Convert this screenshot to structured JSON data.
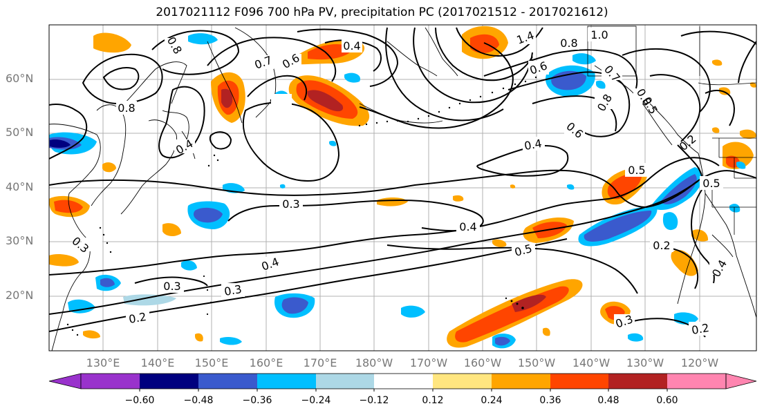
{
  "title": "2017021112 F096 700 hPa PV, precipitation PC (2017021512 - 2017021612)",
  "lat_labels": [
    "60°N",
    "50°N",
    "40°N",
    "30°N",
    "20°N"
  ],
  "lon_labels": [
    "130°E",
    "140°E",
    "150°E",
    "160°E",
    "170°E",
    "180°W",
    "170°W",
    "160°W",
    "150°W",
    "140°W",
    "130°W",
    "120°W"
  ],
  "colorbar": {
    "colors": [
      "#9932cc",
      "#00007f",
      "#3a5acd",
      "#00bfff",
      "#add8e6",
      "#ffffff",
      "#ffe680",
      "#ffa500",
      "#ff4500",
      "#b22222",
      "#ff85b0"
    ],
    "labels": [
      "−0.60",
      "−0.48",
      "−0.36",
      "−0.24",
      "−0.12",
      "0.12",
      "0.24",
      "0.36",
      "0.48",
      "0.60"
    ]
  },
  "contour_labels": [
    "0.8",
    "0.8",
    "0.7",
    "0.6",
    "0.4",
    "1.4",
    "0.8",
    "1.0",
    "0.8",
    "0.6",
    "0.7",
    "0.8",
    "0.5",
    "0.6",
    "0.4",
    "0.4",
    "0.2",
    "0.5",
    "0.5",
    "0.3",
    "0.4",
    "0.3",
    "0.4",
    "0.5",
    "0.3",
    "0.3",
    "0.2",
    "0.2",
    "0.4",
    "0.3",
    "0.2"
  ]
}
